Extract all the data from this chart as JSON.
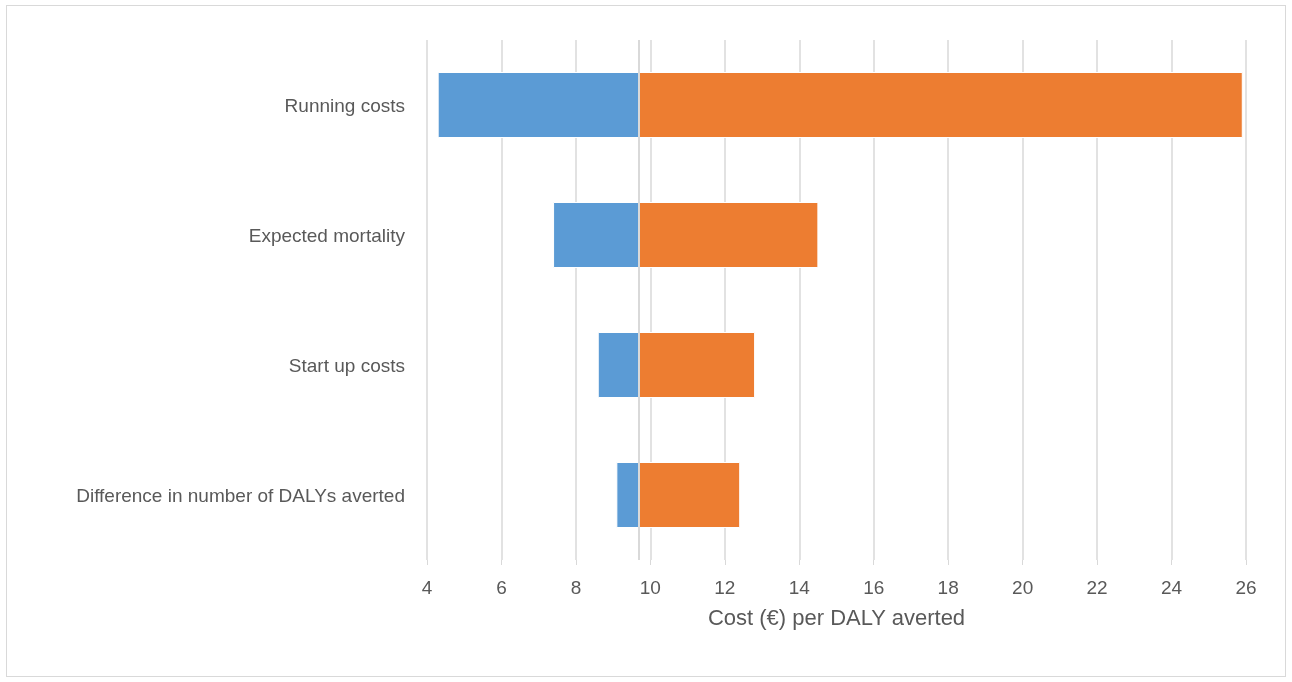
{
  "chart_data": {
    "type": "bar",
    "orientation": "horizontal",
    "xlabel": "Cost (€) per DALY averted",
    "categories": [
      "Running costs",
      "Expected mortality",
      "Start up costs",
      "Difference in number of DALYs averted"
    ],
    "series": [
      {
        "color": "#5b9bd5",
        "base": [
          4.3,
          7.4,
          8.6,
          9.1
        ],
        "values": [
          5.4,
          2.3,
          1.1,
          0.6
        ]
      },
      {
        "color": "#ed7d31",
        "base": [
          9.7,
          9.7,
          9.7,
          9.7
        ],
        "values": [
          16.2,
          4.8,
          3.1,
          2.7
        ]
      }
    ],
    "xlim": [
      4,
      26
    ],
    "xticks": [
      4,
      6,
      8,
      10,
      12,
      14,
      16,
      18,
      20,
      22,
      24,
      26
    ],
    "ref_lines": [
      {
        "axis": "x",
        "value": 9.7,
        "color": "#d9d9d9"
      }
    ],
    "grid": "x"
  }
}
